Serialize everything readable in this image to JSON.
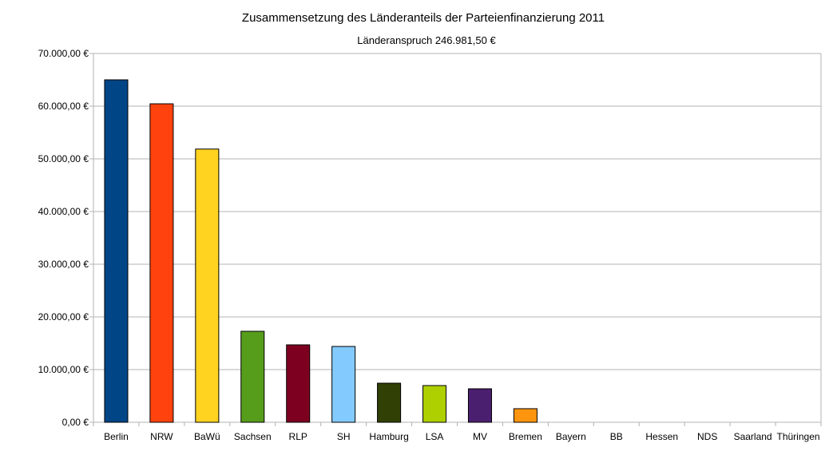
{
  "chart_data": {
    "type": "bar",
    "title": "Zusammensetzung des Länderanteils der Parteienfinanzierung 2011",
    "subtitle": "Länderanspruch 246.981,50 €",
    "xlabel": "",
    "ylabel": "",
    "ylim": [
      0,
      70000
    ],
    "grid": true,
    "legend": "none",
    "yticks": [
      "0,00 €",
      "10.000,00 €",
      "20.000,00 €",
      "30.000,00 €",
      "40.000,00 €",
      "50.000,00 €",
      "60.000,00 €",
      "70.000,00 €"
    ],
    "categories": [
      "Berlin",
      "NRW",
      "BaWü",
      "Sachsen",
      "RLP",
      "SH",
      "Hamburg",
      "LSA",
      "MV",
      "Bremen",
      "Bayern",
      "BB",
      "Hessen",
      "NDS",
      "Saarland",
      "Thüringen"
    ],
    "values": [
      65000,
      60450,
      51860,
      17270,
      14700,
      14390,
      7420,
      6970,
      6360,
      2580,
      0,
      0,
      0,
      0,
      0,
      0
    ],
    "colors": [
      "#004586",
      "#ff420e",
      "#ffd320",
      "#579d1c",
      "#7e0021",
      "#83caff",
      "#314004",
      "#aecf00",
      "#4b1f6f",
      "#ff950e",
      "#c5000b",
      "#0084d1",
      "#004586",
      "#ff420e",
      "#ffd320",
      "#579d1c"
    ]
  }
}
